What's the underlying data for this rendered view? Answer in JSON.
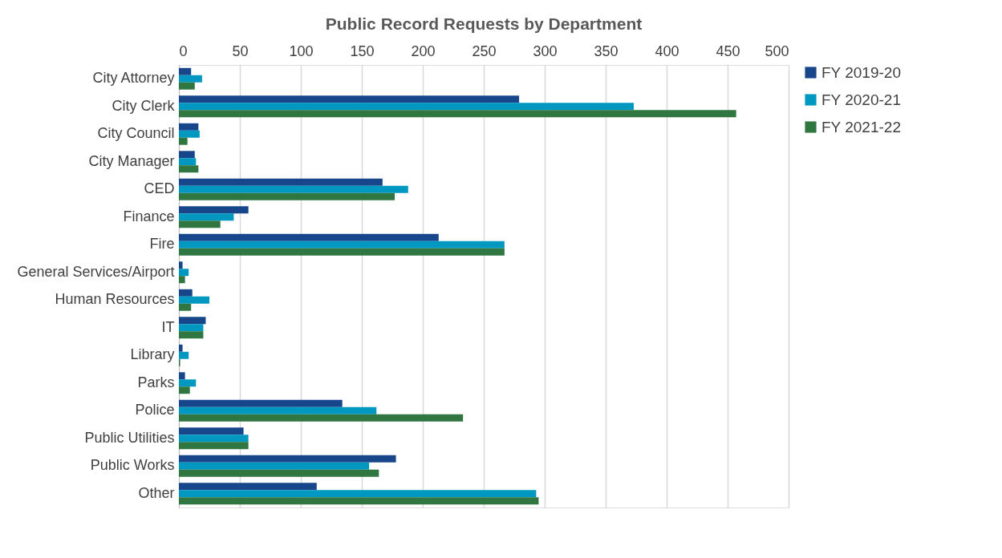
{
  "chart_data": {
    "type": "bar",
    "orientation": "horizontal",
    "title": "Public Record Requests by Department",
    "categories": [
      "City Attorney",
      "City Clerk",
      "City Council",
      "City Manager",
      "CED",
      "Finance",
      "Fire",
      "General Services/Airport",
      "Human Resources",
      "IT",
      "Library",
      "Parks",
      "Police",
      "Public Utilities",
      "Public Works",
      "Other"
    ],
    "series": [
      {
        "name": "FY 2019-20",
        "color": "#17468a",
        "values": [
          10,
          279,
          16,
          13,
          167,
          57,
          213,
          3,
          11,
          22,
          3,
          5,
          134,
          53,
          178,
          113
        ]
      },
      {
        "name": "FY 2020-21",
        "color": "#0097c1",
        "values": [
          19,
          373,
          17,
          14,
          188,
          45,
          267,
          8,
          25,
          20,
          8,
          14,
          162,
          57,
          156,
          293
        ]
      },
      {
        "name": "FY 2021-22",
        "color": "#2f7640",
        "values": [
          13,
          457,
          7,
          16,
          177,
          34,
          267,
          5,
          10,
          20,
          1,
          9,
          233,
          57,
          164,
          295
        ]
      }
    ],
    "xlim": [
      0,
      500
    ],
    "xticks": [
      0,
      50,
      100,
      150,
      200,
      250,
      300,
      350,
      400,
      450,
      500
    ],
    "grid": "x",
    "legend": "right"
  }
}
